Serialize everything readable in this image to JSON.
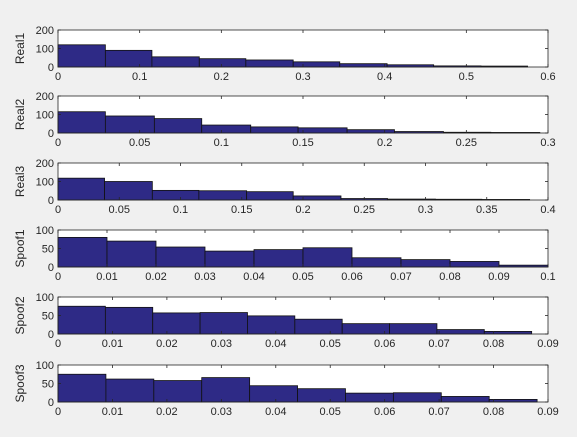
{
  "chart_data": [
    {
      "type": "bar",
      "ylabel": "Real1",
      "xlim": [
        0,
        0.6
      ],
      "ylim": [
        0,
        200
      ],
      "xticks": [
        "0",
        "0.1",
        "0.2",
        "0.3",
        "0.4",
        "0.5",
        "0.6"
      ],
      "yticks": [
        "0",
        "100",
        "200"
      ],
      "bin_edges": [
        0,
        0.058,
        0.115,
        0.173,
        0.23,
        0.288,
        0.345,
        0.403,
        0.46,
        0.518,
        0.575
      ],
      "values": [
        120,
        90,
        55,
        45,
        38,
        28,
        18,
        12,
        6,
        5
      ]
    },
    {
      "type": "bar",
      "ylabel": "Real2",
      "xlim": [
        0,
        0.3
      ],
      "ylim": [
        0,
        200
      ],
      "xticks": [
        "0",
        "0.05",
        "0.1",
        "0.15",
        "0.2",
        "0.25",
        "0.3"
      ],
      "yticks": [
        "0",
        "100",
        "200"
      ],
      "bin_edges": [
        0,
        0.029,
        0.059,
        0.088,
        0.118,
        0.147,
        0.177,
        0.206,
        0.236,
        0.265,
        0.295
      ],
      "values": [
        115,
        92,
        78,
        43,
        33,
        28,
        18,
        8,
        4,
        3
      ]
    },
    {
      "type": "bar",
      "ylabel": "Real3",
      "xlim": [
        0,
        0.4
      ],
      "ylim": [
        0,
        200
      ],
      "xticks": [
        "0",
        "0.05",
        "0.1",
        "0.15",
        "0.2",
        "0.25",
        "0.3",
        "0.35",
        "0.4"
      ],
      "yticks": [
        "0",
        "100",
        "200"
      ],
      "bin_edges": [
        0,
        0.038,
        0.077,
        0.115,
        0.154,
        0.192,
        0.231,
        0.269,
        0.308,
        0.346,
        0.385
      ],
      "values": [
        118,
        100,
        52,
        50,
        45,
        22,
        8,
        5,
        4,
        3
      ]
    },
    {
      "type": "bar",
      "ylabel": "Spoof1",
      "xlim": [
        0,
        0.1
      ],
      "ylim": [
        0,
        100
      ],
      "xticks": [
        "0",
        "0.01",
        "0.02",
        "0.03",
        "0.04",
        "0.05",
        "0.06",
        "0.07",
        "0.08",
        "0.09",
        "0.1"
      ],
      "yticks": [
        "0",
        "50",
        "100"
      ],
      "bin_edges": [
        0,
        0.01,
        0.02,
        0.03,
        0.04,
        0.05,
        0.06,
        0.07,
        0.08,
        0.09,
        0.1
      ],
      "values": [
        80,
        70,
        54,
        43,
        47,
        52,
        25,
        20,
        15,
        5
      ]
    },
    {
      "type": "bar",
      "ylabel": "Spoof2",
      "xlim": [
        0,
        0.09
      ],
      "ylim": [
        0,
        100
      ],
      "xticks": [
        "0",
        "0.01",
        "0.02",
        "0.03",
        "0.04",
        "0.05",
        "0.06",
        "0.07",
        "0.08",
        "0.09"
      ],
      "yticks": [
        "0",
        "50",
        "100"
      ],
      "bin_edges": [
        0,
        0.0087,
        0.0174,
        0.0261,
        0.0348,
        0.0435,
        0.0522,
        0.0609,
        0.0696,
        0.0783,
        0.087
      ],
      "values": [
        75,
        72,
        57,
        58,
        49,
        40,
        28,
        28,
        12,
        7
      ]
    },
    {
      "type": "bar",
      "ylabel": "Spoof3",
      "xlim": [
        0,
        0.09
      ],
      "ylim": [
        0,
        100
      ],
      "xticks": [
        "0",
        "0.01",
        "0.02",
        "0.03",
        "0.04",
        "0.05",
        "0.06",
        "0.07",
        "0.08",
        "0.09"
      ],
      "yticks": [
        "0",
        "50",
        "100"
      ],
      "bin_edges": [
        0,
        0.0088,
        0.0176,
        0.0264,
        0.0352,
        0.044,
        0.0528,
        0.0616,
        0.0704,
        0.0792,
        0.088
      ],
      "values": [
        75,
        62,
        58,
        66,
        44,
        36,
        24,
        25,
        15,
        7
      ]
    }
  ],
  "colors": {
    "bar_fill": "#2e2a86",
    "bar_edge": "#111111",
    "axes_bg": "#ffffff",
    "figure_bg": "#f0f0f0",
    "axis_line": "#262626"
  }
}
